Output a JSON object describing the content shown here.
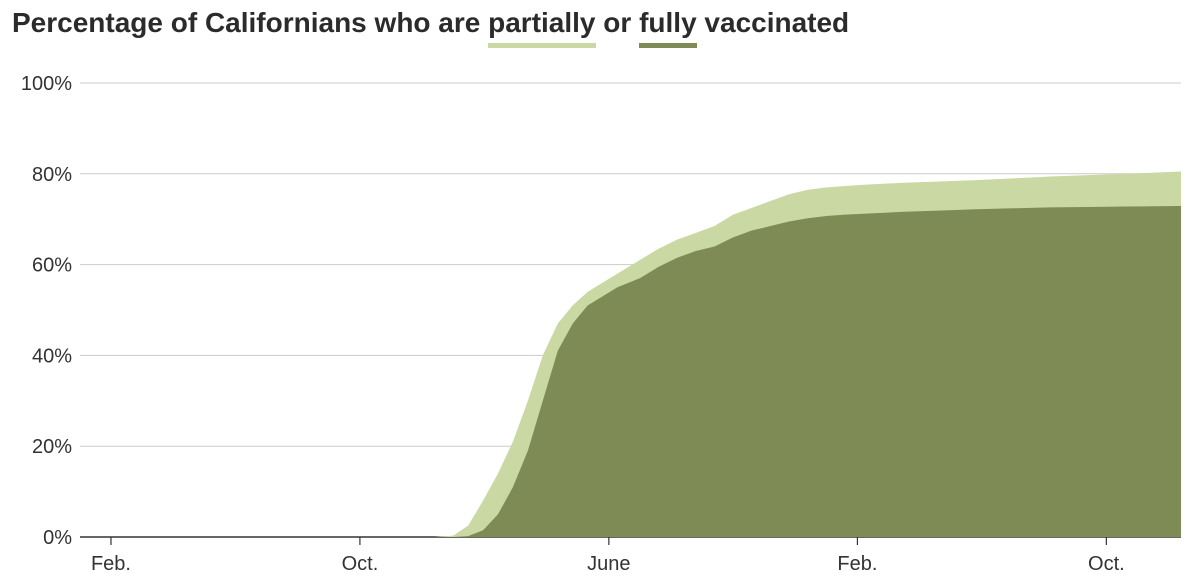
{
  "title": {
    "prefix": "Percentage of Californians who are ",
    "partial_word": "partially",
    "middle": " or ",
    "full_word": "fully",
    "suffix": " vaccinated"
  },
  "colors": {
    "partial": "#cad8a3",
    "full": "#7f8b55",
    "grid": "#cccccc",
    "axis": "#333333"
  },
  "chart_data": {
    "type": "area",
    "title": "Percentage of Californians who are partially or fully vaccinated",
    "xlabel": "",
    "ylabel": "",
    "ylim": [
      0,
      100
    ],
    "y_ticks": [
      0,
      20,
      40,
      60,
      80,
      100
    ],
    "y_tick_labels": [
      "0%",
      "20%",
      "40%",
      "60%",
      "80%",
      "100%"
    ],
    "x_ticks": [
      2020.083,
      2020.75,
      2021.417,
      2022.083,
      2022.75
    ],
    "x_tick_labels": [
      "Feb.",
      "Oct.",
      "June",
      "Feb.",
      "Oct."
    ],
    "xlim": [
      2020.0,
      2022.95
    ],
    "grid": true,
    "legend": "in-title",
    "series": [
      {
        "name": "partially",
        "x": [
          2020.0,
          2020.95,
          2021.0,
          2021.04,
          2021.08,
          2021.12,
          2021.16,
          2021.2,
          2021.24,
          2021.28,
          2021.32,
          2021.36,
          2021.4,
          2021.44,
          2021.5,
          2021.55,
          2021.6,
          2021.65,
          2021.7,
          2021.75,
          2021.8,
          2021.85,
          2021.9,
          2021.95,
          2022.0,
          2022.05,
          2022.1,
          2022.2,
          2022.3,
          2022.4,
          2022.5,
          2022.6,
          2022.7,
          2022.8,
          2022.95
        ],
        "values": [
          0,
          0,
          0.3,
          2.5,
          8,
          14,
          21,
          30,
          40,
          47,
          51,
          54,
          56,
          58,
          61,
          63.5,
          65.5,
          67,
          68.5,
          71,
          72.5,
          74,
          75.5,
          76.5,
          77,
          77.3,
          77.6,
          78,
          78.3,
          78.6,
          79,
          79.4,
          79.7,
          80,
          80.5
        ]
      },
      {
        "name": "fully",
        "x": [
          2020.0,
          2021.0,
          2021.04,
          2021.08,
          2021.12,
          2021.16,
          2021.2,
          2021.24,
          2021.28,
          2021.32,
          2021.36,
          2021.4,
          2021.44,
          2021.5,
          2021.55,
          2021.6,
          2021.65,
          2021.7,
          2021.75,
          2021.8,
          2021.85,
          2021.9,
          2021.95,
          2022.0,
          2022.05,
          2022.1,
          2022.2,
          2022.3,
          2022.4,
          2022.5,
          2022.6,
          2022.7,
          2022.8,
          2022.95
        ],
        "values": [
          0,
          0,
          0.2,
          1.5,
          5,
          11,
          19,
          30,
          41,
          47,
          51,
          53,
          55,
          57,
          59.5,
          61.5,
          63,
          64,
          66,
          67.5,
          68.5,
          69.5,
          70.2,
          70.7,
          71,
          71.2,
          71.6,
          71.9,
          72.2,
          72.4,
          72.6,
          72.7,
          72.8,
          72.9
        ]
      }
    ]
  }
}
